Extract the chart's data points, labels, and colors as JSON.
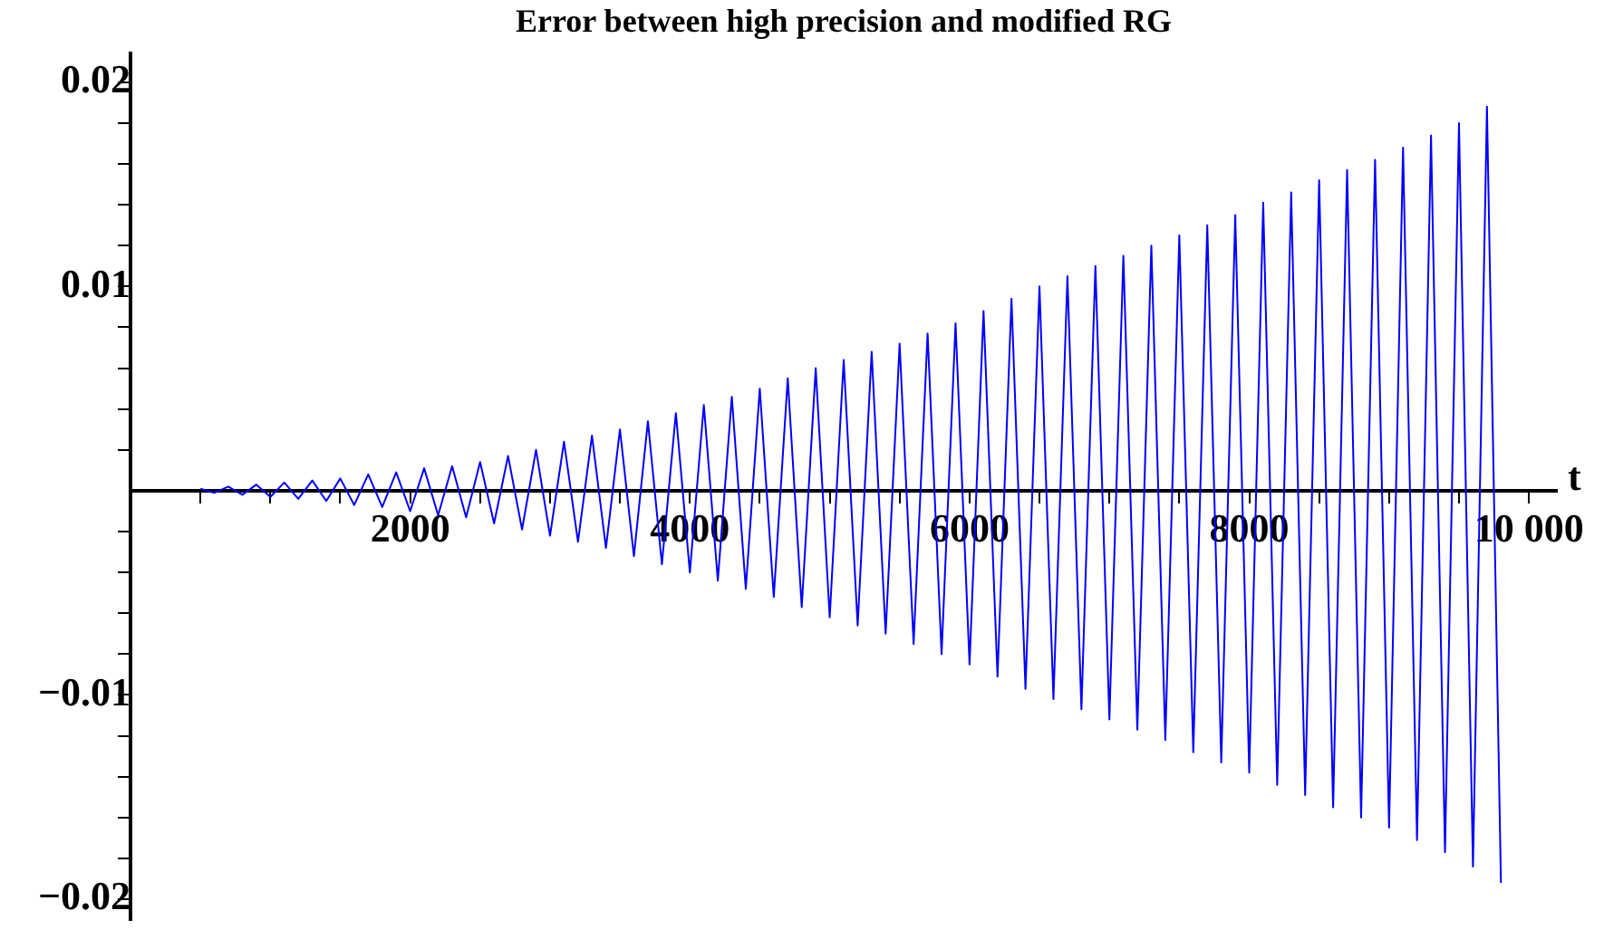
{
  "chart_data": {
    "type": "line",
    "title": "Error between high precision and modified RG",
    "xlabel": "t",
    "x": [
      500,
      600,
      700,
      800,
      900,
      1000,
      1100,
      1200,
      1300,
      1400,
      1500,
      1600,
      1700,
      1800,
      1900,
      2000,
      2100,
      2200,
      2300,
      2400,
      2500,
      2600,
      2700,
      2800,
      2900,
      3000,
      3100,
      3200,
      3300,
      3400,
      3500,
      3600,
      3700,
      3800,
      3900,
      4000,
      4100,
      4200,
      4300,
      4400,
      4500,
      4600,
      4700,
      4800,
      4900,
      5000,
      5100,
      5200,
      5300,
      5400,
      5500,
      5600,
      5700,
      5800,
      5900,
      6000,
      6100,
      6200,
      6300,
      6400,
      6500,
      6600,
      6700,
      6800,
      6900,
      7000,
      7100,
      7200,
      7300,
      7400,
      7500,
      7600,
      7700,
      7800,
      7900,
      8000,
      8100,
      8200,
      8300,
      8400,
      8500,
      8600,
      8700,
      8800,
      8900,
      9000,
      9100,
      9200,
      9300,
      9400,
      9500,
      9600,
      9700,
      9800
    ],
    "series": [
      {
        "color": "#0000ff",
        "values": [
          0.0001,
          -0.0001,
          0.0002,
          -0.0002,
          0.0003,
          -0.0003,
          0.0004,
          -0.0004,
          0.0005,
          -0.0005,
          0.0006,
          -0.0007,
          0.0008,
          -0.0008,
          0.0009,
          -0.001,
          0.0011,
          -0.0012,
          0.0012,
          -0.0013,
          0.0014,
          -0.0016,
          0.0017,
          -0.0019,
          0.002,
          -0.0022,
          0.0024,
          -0.0025,
          0.0027,
          -0.0028,
          0.003,
          -0.0032,
          0.0034,
          -0.0036,
          0.0038,
          -0.004,
          0.0042,
          -0.0044,
          0.0046,
          -0.0048,
          0.005,
          -0.0052,
          0.0055,
          -0.0057,
          0.006,
          -0.0062,
          0.0064,
          -0.0066,
          0.0068,
          -0.007,
          0.0072,
          -0.0075,
          0.0077,
          -0.008,
          0.0082,
          -0.0085,
          0.0088,
          -0.0091,
          0.0094,
          -0.0097,
          0.01,
          -0.0102,
          0.0105,
          -0.0107,
          0.011,
          -0.0112,
          0.0115,
          -0.0117,
          0.012,
          -0.0122,
          0.0125,
          -0.0128,
          0.013,
          -0.0133,
          0.0135,
          -0.0138,
          0.0141,
          -0.0144,
          0.0146,
          -0.0149,
          0.0152,
          -0.0155,
          0.0157,
          -0.016,
          0.0162,
          -0.0165,
          0.0168,
          -0.0171,
          0.0174,
          -0.0177,
          0.018,
          -0.0184,
          0.0188,
          -0.0192
        ]
      }
    ],
    "xlim": [
      0,
      10200
    ],
    "ylim": [
      -0.021,
      0.0214
    ],
    "xticks": [
      {
        "value": 500,
        "label": null
      },
      {
        "value": 1000,
        "label": null
      },
      {
        "value": 1500,
        "label": null
      },
      2000,
      {
        "value": 2500,
        "label": null
      },
      {
        "value": 3000,
        "label": null
      },
      {
        "value": 3500,
        "label": null
      },
      4000,
      {
        "value": 4500,
        "label": null
      },
      {
        "value": 5000,
        "label": null
      },
      {
        "value": 5500,
        "label": null
      },
      6000,
      {
        "value": 6500,
        "label": null
      },
      {
        "value": 7000,
        "label": null
      },
      {
        "value": 7500,
        "label": null
      },
      8000,
      {
        "value": 8500,
        "label": null
      },
      {
        "value": 9000,
        "label": null
      },
      {
        "value": 9500,
        "label": null
      },
      {
        "value": 10000,
        "label": "10 000"
      }
    ],
    "yticks": [
      -0.02,
      {
        "value": -0.018,
        "label": null
      },
      {
        "value": -0.016,
        "label": null
      },
      {
        "value": -0.014,
        "label": null
      },
      {
        "value": -0.012,
        "label": null
      },
      -0.01,
      {
        "value": -0.008,
        "label": null
      },
      {
        "value": -0.006,
        "label": null
      },
      {
        "value": -0.004,
        "label": null
      },
      {
        "value": -0.002,
        "label": null
      },
      {
        "value": 0.002,
        "label": null
      },
      {
        "value": 0.004,
        "label": null
      },
      {
        "value": 0.006,
        "label": null
      },
      {
        "value": 0.008,
        "label": null
      },
      0.01,
      {
        "value": 0.012,
        "label": null
      },
      {
        "value": 0.014,
        "label": null
      },
      {
        "value": 0.016,
        "label": null
      },
      {
        "value": 0.018,
        "label": null
      },
      0.02
    ],
    "grid": false,
    "legend": false,
    "marker": "none",
    "line_style": "solid"
  }
}
